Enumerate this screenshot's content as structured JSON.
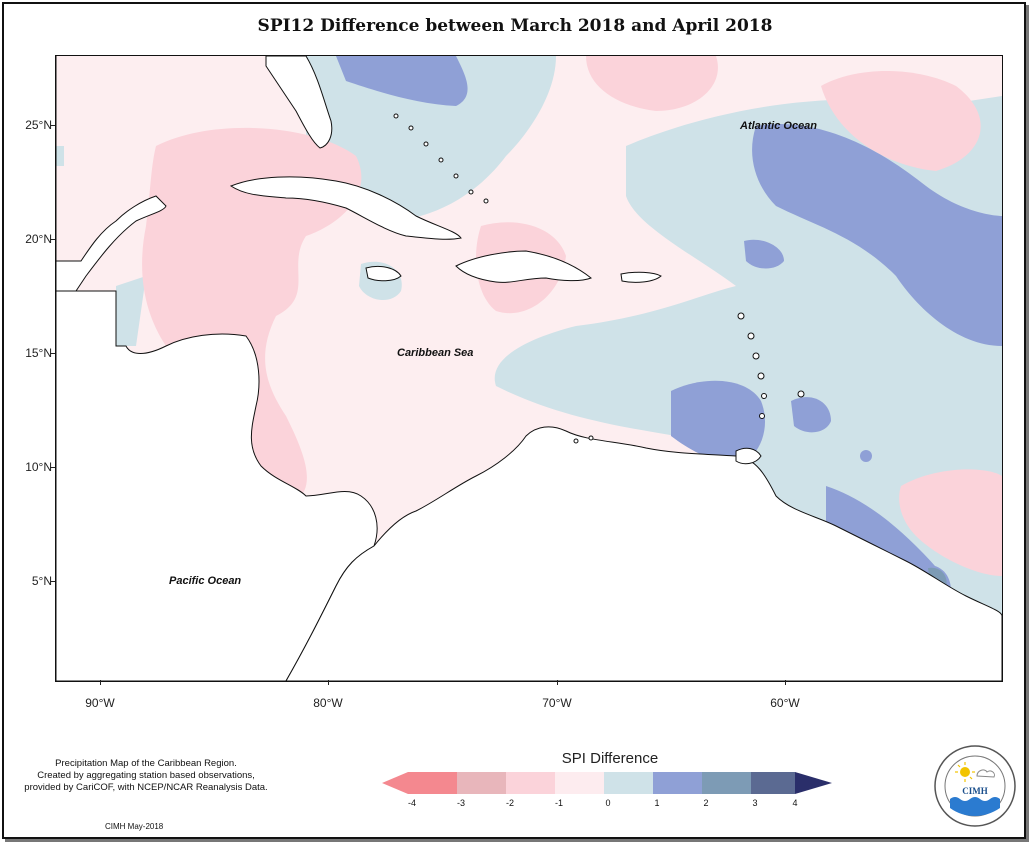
{
  "title": "SPI12 Difference between March 2018 and April 2018",
  "map": {
    "lat_labels": [
      "25°N",
      "20°N",
      "15°N",
      "10°N",
      "5°N"
    ],
    "lon_labels": [
      "90°W",
      "80°W",
      "70°W",
      "60°W"
    ],
    "ocean_labels": {
      "atlantic": "Atlantic Ocean",
      "caribbean": "Caribbean Sea",
      "pacific": "Pacific Ocean"
    }
  },
  "legend": {
    "title": "SPI Difference",
    "ticks": [
      "-4",
      "-3",
      "-2",
      "-1",
      "0",
      "1",
      "2",
      "3",
      "4"
    ],
    "colors": [
      "#f4888f",
      "#e8b6bb",
      "#fbd3da",
      "#fdecef",
      "#cfe2e8",
      "#8fa0d6",
      "#7d9bb5",
      "#5b6a92",
      "#2a2e6a"
    ]
  },
  "footer": {
    "line1": "Precipitation Map of the Caribbean Region.",
    "line2": "Created by aggregating station based observations,",
    "line3": "provided by CariCOF, with NCEP/NCAR Reanalysis Data.",
    "credit": "CIMH May-2018"
  },
  "logo": {
    "text": "CIMH"
  }
}
